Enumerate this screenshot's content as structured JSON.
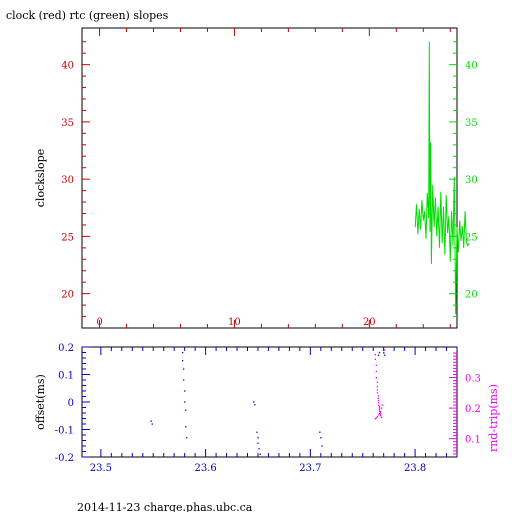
{
  "footer": "2014-11-23 charge.phas.ubc.ca",
  "colors": {
    "red": "#cc0000",
    "green": "#00dd00",
    "blue": "#0000cc",
    "magenta": "#ee00ee",
    "black": "#000000"
  },
  "chart_data": [
    {
      "type": "line",
      "title": "clock (red) rtc (green) slopes",
      "ylabel": "clockslope",
      "xlim": [
        -1.3,
        26.5
      ],
      "ylim": [
        17,
        43.2
      ],
      "xticks": [
        0,
        10,
        20
      ],
      "yticks_left": [
        20,
        25,
        30,
        35,
        40
      ],
      "yticks_right": [
        20,
        25,
        30,
        35,
        40
      ],
      "grid": false,
      "series": [
        {
          "color": "green",
          "x": [
            23.4,
            23.5,
            23.6,
            23.7,
            23.8,
            23.9,
            24.0,
            24.1,
            24.2,
            24.3,
            24.4,
            24.45,
            24.5,
            24.55,
            24.6,
            24.7,
            24.8,
            24.9,
            25.0,
            25.1,
            25.2,
            25.3,
            25.4,
            25.5,
            25.6,
            25.7,
            25.8,
            25.9,
            26.0,
            26.1,
            26.2,
            26.3,
            26.4,
            26.5,
            26.6,
            26.7,
            26.8,
            26.9,
            27.0,
            27.1,
            27.2,
            27.3,
            27.4
          ],
          "y": [
            25.8,
            27.8,
            25.2,
            27.4,
            25.6,
            28.2,
            26.4,
            27.2,
            24.8,
            28.8,
            26.6,
            42,
            25.4,
            33.2,
            22.6,
            29.5,
            25.8,
            28.4,
            25.0,
            27.6,
            24.0,
            28.9,
            24.4,
            27.6,
            23.4,
            28.6,
            25.3,
            26.8,
            22.8,
            27.2,
            24.2,
            30.2,
            18.2,
            25.8,
            23.6,
            26.4,
            24.6,
            25.9,
            24.0,
            27.2,
            24.5,
            24.2,
            24.4
          ]
        }
      ]
    },
    {
      "type": "scatter",
      "ylabel_left": "offset(ms)",
      "ylabel_right": "rnd-trip(ms)",
      "xlim": [
        23.482,
        23.84
      ],
      "ylim": [
        -0.2,
        0.2
      ],
      "xticks": [
        23.5,
        23.6,
        23.7,
        23.8
      ],
      "yticks_left": [
        -0.2,
        -0.1,
        0,
        0.1,
        0.2
      ],
      "right_range": [
        0.04,
        0.4
      ],
      "yticks_right": [
        0.1,
        0.2,
        0.3
      ],
      "series": [
        {
          "color": "blue",
          "x": [
            23.548,
            23.549,
            23.578,
            23.578,
            23.579,
            23.579,
            23.58,
            23.58,
            23.581,
            23.581,
            23.582,
            23.646,
            23.647,
            23.649,
            23.65,
            23.65,
            23.651,
            23.652,
            23.709,
            23.71,
            23.711,
            23.765,
            23.766,
            23.77,
            23.771
          ],
          "y": [
            -0.07,
            -0.08,
            0.18,
            0.15,
            0.12,
            0.08,
            0.04,
            0.0,
            -0.03,
            -0.09,
            -0.13,
            0.0,
            -0.01,
            -0.11,
            -0.13,
            -0.15,
            -0.17,
            -0.19,
            -0.11,
            -0.13,
            -0.16,
            0.17,
            0.18,
            0.18,
            0.17
          ]
        },
        {
          "color": "magenta",
          "x": [
            23.762,
            23.762,
            23.763,
            23.763,
            23.763,
            23.764,
            23.764,
            23.764,
            23.764,
            23.765,
            23.765,
            23.765,
            23.765,
            23.765,
            23.766,
            23.766,
            23.766,
            23.766,
            23.767,
            23.767,
            23.767,
            23.768,
            23.762,
            23.763,
            23.764,
            23.765,
            23.766,
            23.767,
            23.768,
            23.769,
            23.77,
            23.771
          ],
          "y": [
            0.375,
            0.36,
            0.34,
            0.32,
            0.3,
            0.285,
            0.27,
            0.26,
            0.25,
            0.24,
            0.232,
            0.225,
            0.218,
            0.21,
            0.205,
            0.2,
            0.195,
            0.19,
            0.185,
            0.18,
            0.175,
            0.17,
            0.165,
            0.168,
            0.172,
            0.178,
            0.182,
            0.188,
            0.2,
            0.21,
            0.38,
            0.39
          ]
        }
      ]
    }
  ]
}
